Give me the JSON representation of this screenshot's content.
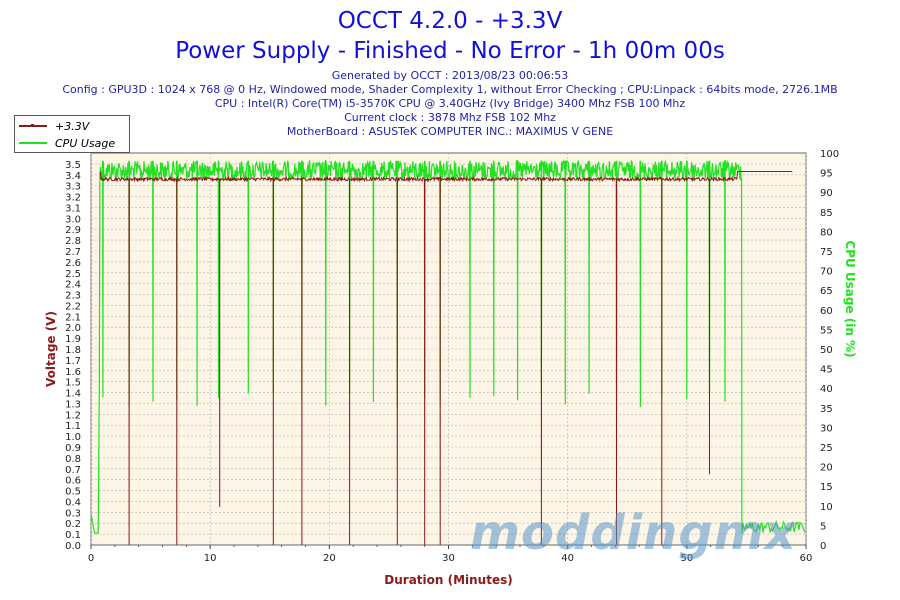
{
  "header": {
    "title": "OCCT 4.2.0 - +3.3V",
    "subtitle": "Power Supply - Finished - No Error - 1h 00m 00s",
    "info": [
      "Generated by OCCT : 2013/08/23 00:06:53",
      "Config : GPU3D : 1024 x 768 @ 0 Hz, Windowed mode, Shader Complexity 1, without Error Checking ; CPU:Linpack : 64bits mode, 2726.1MB",
      "CPU : Intel(R) Core(TM) i5-3570K CPU @ 3.40GHz (Ivy Bridge) 3400 Mhz FSB 100 Mhz",
      "Current clock : 3878 Mhz FSB 102 Mhz",
      "MotherBoard : ASUSTeK COMPUTER INC.: MAXIMUS V GENE"
    ]
  },
  "watermark": "moddingmx",
  "colors": {
    "voltage": "#8b1a1a",
    "cpu": "#22e022",
    "plot_bg": "#fdf5e6",
    "grid": "#b0b0b0",
    "title": "#1010d8"
  },
  "chart_data": {
    "type": "line",
    "xlabel": "Duration (Minutes)",
    "ylabel": "Voltage (V)",
    "y2label": "CPU Usage (in %)",
    "xlim": [
      0,
      60
    ],
    "ylim": [
      0,
      3.6
    ],
    "y2lim": [
      0,
      100
    ],
    "x_ticks": [
      0,
      10,
      20,
      30,
      40,
      50,
      60
    ],
    "y_ticks": [
      "0.0",
      "0.1",
      "0.2",
      "0.3",
      "0.4",
      "0.5",
      "0.6",
      "0.7",
      "0.8",
      "0.9",
      "1.0",
      "1.1",
      "1.2",
      "1.3",
      "1.4",
      "1.5",
      "1.6",
      "1.7",
      "1.8",
      "1.9",
      "2.0",
      "2.1",
      "2.2",
      "2.3",
      "2.4",
      "2.5",
      "2.6",
      "2.7",
      "2.8",
      "2.9",
      "3.0",
      "3.1",
      "3.2",
      "3.3",
      "3.4",
      "3.5"
    ],
    "y2_ticks": [
      0,
      5,
      10,
      15,
      20,
      25,
      30,
      35,
      40,
      45,
      50,
      55,
      60,
      65,
      70,
      75,
      80,
      85,
      90,
      95,
      100
    ],
    "grid": true,
    "legend_position": "top-left",
    "series": [
      {
        "name": "+3.3V",
        "axis": "left",
        "baseline": 3.36,
        "start_minute": 0.8,
        "end_minute": 54.2,
        "idle_value": 3.43,
        "dips": [
          {
            "x": 3.2,
            "y": 0.0
          },
          {
            "x": 7.2,
            "y": 0.0
          },
          {
            "x": 10.8,
            "y": 0.35
          },
          {
            "x": 15.3,
            "y": 0.0
          },
          {
            "x": 17.7,
            "y": 0.0
          },
          {
            "x": 21.7,
            "y": 0.0
          },
          {
            "x": 25.7,
            "y": 0.0
          },
          {
            "x": 28.0,
            "y": 0.0
          },
          {
            "x": 29.3,
            "y": 0.0
          },
          {
            "x": 37.8,
            "y": 0.0
          },
          {
            "x": 44.1,
            "y": 0.0
          },
          {
            "x": 47.9,
            "y": 0.0
          },
          {
            "x": 51.9,
            "y": 0.65
          }
        ]
      },
      {
        "name": "CPU Usage",
        "axis": "right",
        "load_value": 98,
        "idle_value": 3,
        "ramp_start": 0.6,
        "load_end": 54.6,
        "dips": [
          {
            "x": 1.0,
            "y": 35
          },
          {
            "x": 3.2,
            "y": 35
          },
          {
            "x": 5.2,
            "y": 35
          },
          {
            "x": 7.2,
            "y": 35
          },
          {
            "x": 8.9,
            "y": 35
          },
          {
            "x": 10.7,
            "y": 35
          },
          {
            "x": 13.2,
            "y": 35
          },
          {
            "x": 15.3,
            "y": 35
          },
          {
            "x": 17.7,
            "y": 35
          },
          {
            "x": 19.7,
            "y": 35
          },
          {
            "x": 21.7,
            "y": 35
          },
          {
            "x": 23.7,
            "y": 35
          },
          {
            "x": 25.7,
            "y": 35
          },
          {
            "x": 28.0,
            "y": 35
          },
          {
            "x": 29.3,
            "y": 35
          },
          {
            "x": 31.8,
            "y": 35
          },
          {
            "x": 33.8,
            "y": 35
          },
          {
            "x": 35.8,
            "y": 35
          },
          {
            "x": 37.8,
            "y": 35
          },
          {
            "x": 39.8,
            "y": 35
          },
          {
            "x": 41.8,
            "y": 35
          },
          {
            "x": 44.1,
            "y": 35
          },
          {
            "x": 46.1,
            "y": 35
          },
          {
            "x": 47.9,
            "y": 35
          },
          {
            "x": 50.0,
            "y": 35
          },
          {
            "x": 51.9,
            "y": 35
          },
          {
            "x": 53.2,
            "y": 35
          }
        ]
      }
    ]
  }
}
